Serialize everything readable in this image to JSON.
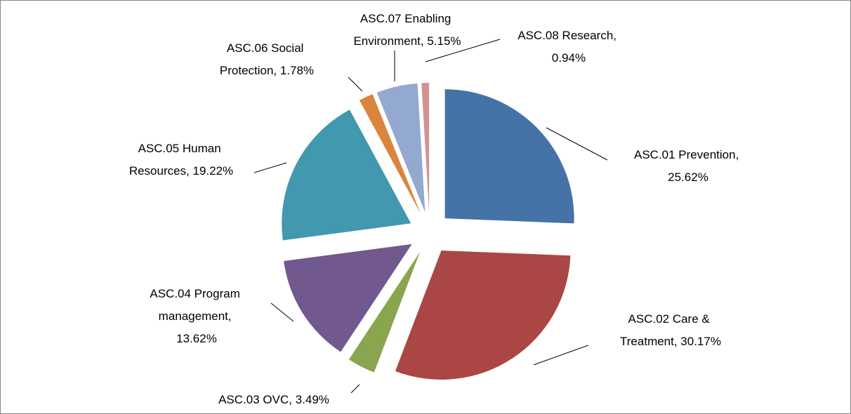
{
  "chart_data": {
    "type": "pie",
    "values": [
      25.62,
      30.17,
      3.49,
      13.62,
      19.22,
      1.78,
      5.15,
      0.94
    ],
    "value_labels": [
      "ASC.01 Prevention, 25.62%",
      "ASC.02 Care & Treatment, 30.17%",
      "ASC.03 OVC, 3.49%",
      "ASC.04 Program management, 13.62%",
      "ASC.05 Human Resources, 19.22%",
      "ASC.06 Social Protection, 1.78%",
      "ASC.07 Enabling Environment, 5.15%",
      "ASC.08 Research, 0.94%"
    ],
    "colors": [
      "#4572a7",
      "#aa4643",
      "#89a54e",
      "#71588f",
      "#4198af",
      "#db843d",
      "#93a9cf",
      "#d19392"
    ],
    "exploded": true
  }
}
